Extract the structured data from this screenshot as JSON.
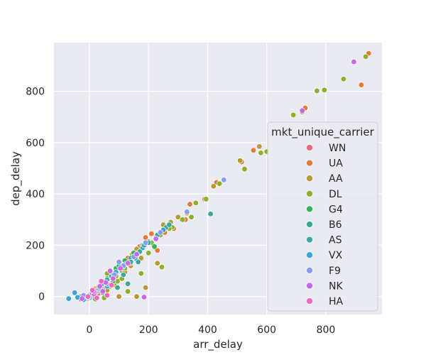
{
  "chart_data": {
    "type": "scatter",
    "title": "",
    "xlabel": "arr_delay",
    "ylabel": "dep_delay",
    "xlim": [
      -120,
      990
    ],
    "ylim": [
      -70,
      990
    ],
    "xticks": [
      0,
      200,
      400,
      600,
      800
    ],
    "yticks": [
      0,
      200,
      400,
      600,
      800
    ],
    "grid": true,
    "legend_position": "center-right",
    "legend_title": "mkt_unique_carrier",
    "series": [
      {
        "name": "WN",
        "color": "#e8697e",
        "points": [
          [
            -10,
            -5
          ],
          [
            0,
            2
          ],
          [
            5,
            10
          ],
          [
            12,
            8
          ],
          [
            20,
            15
          ],
          [
            25,
            20
          ],
          [
            30,
            12
          ],
          [
            40,
            30
          ],
          [
            50,
            40
          ],
          [
            10,
            -3
          ],
          [
            -5,
            -2
          ],
          [
            15,
            5
          ]
        ]
      },
      {
        "name": "UA",
        "color": "#e07b39",
        "points": [
          [
            945,
            948
          ],
          [
            920,
            825
          ],
          [
            730,
            735
          ],
          [
            555,
            570
          ],
          [
            515,
            525
          ],
          [
            430,
            445
          ],
          [
            390,
            380
          ],
          [
            340,
            360
          ],
          [
            325,
            300
          ],
          [
            285,
            265
          ],
          [
            255,
            250
          ],
          [
            230,
            180
          ],
          [
            210,
            245
          ],
          [
            170,
            195
          ],
          [
            150,
            160
          ],
          [
            130,
            150
          ],
          [
            110,
            120
          ],
          [
            80,
            95
          ],
          [
            60,
            70
          ],
          [
            40,
            50
          ],
          [
            20,
            30
          ],
          [
            0,
            5
          ],
          [
            -10,
            -5
          ],
          [
            -30,
            -10
          ],
          [
            100,
            110
          ],
          [
            190,
            230
          ],
          [
            260,
            270
          ],
          [
            50,
            60
          ],
          [
            140,
            120
          ],
          [
            205,
            210
          ]
        ]
      },
      {
        "name": "AA",
        "color": "#b69a34",
        "points": [
          [
            720,
            720
          ],
          [
            575,
            585
          ],
          [
            510,
            530
          ],
          [
            420,
            430
          ],
          [
            330,
            325
          ],
          [
            300,
            310
          ],
          [
            275,
            290
          ],
          [
            250,
            280
          ],
          [
            225,
            225
          ],
          [
            200,
            215
          ],
          [
            160,
            185
          ],
          [
            145,
            165
          ],
          [
            125,
            130
          ],
          [
            110,
            100
          ],
          [
            90,
            80
          ],
          [
            70,
            75
          ],
          [
            50,
            55
          ],
          [
            30,
            35
          ],
          [
            10,
            15
          ],
          [
            -5,
            0
          ],
          [
            -20,
            -8
          ],
          [
            -40,
            -5
          ],
          [
            160,
            0
          ],
          [
            190,
            35
          ],
          [
            100,
            0
          ],
          [
            230,
            130
          ],
          [
            175,
            150
          ],
          [
            120,
            95
          ],
          [
            60,
            25
          ],
          [
            85,
            45
          ]
        ]
      },
      {
        "name": "DL",
        "color": "#8fae2c",
        "points": [
          [
            935,
            935
          ],
          [
            860,
            848
          ],
          [
            795,
            805
          ],
          [
            770,
            802
          ],
          [
            690,
            708
          ],
          [
            600,
            565
          ],
          [
            580,
            560
          ],
          [
            525,
            497
          ],
          [
            440,
            440
          ],
          [
            395,
            380
          ],
          [
            360,
            365
          ],
          [
            345,
            310
          ],
          [
            315,
            300
          ],
          [
            280,
            270
          ],
          [
            270,
            265
          ],
          [
            245,
            115
          ],
          [
            240,
            240
          ],
          [
            225,
            230
          ],
          [
            210,
            210
          ],
          [
            180,
            200
          ],
          [
            165,
            170
          ],
          [
            140,
            130
          ],
          [
            120,
            110
          ],
          [
            90,
            100
          ],
          [
            70,
            40
          ],
          [
            45,
            30
          ],
          [
            25,
            20
          ],
          [
            5,
            10
          ],
          [
            -15,
            -5
          ],
          [
            -30,
            0
          ],
          [
            20,
            -10
          ],
          [
            50,
            -5
          ],
          [
            130,
            20
          ],
          [
            95,
            60
          ],
          [
            60,
            90
          ],
          [
            200,
            170
          ],
          [
            175,
            90
          ],
          [
            110,
            70
          ]
        ]
      },
      {
        "name": "G4",
        "color": "#33b354",
        "points": [
          [
            220,
            195
          ],
          [
            150,
            170
          ],
          [
            90,
            110
          ],
          [
            60,
            70
          ],
          [
            35,
            40
          ],
          [
            15,
            20
          ],
          [
            0,
            5
          ],
          [
            -10,
            -2
          ],
          [
            80,
            60
          ],
          [
            120,
            140
          ],
          [
            45,
            15
          ]
        ]
      },
      {
        "name": "B6",
        "color": "#3aa892",
        "points": [
          [
            410,
            322
          ],
          [
            260,
            270
          ],
          [
            180,
            190
          ],
          [
            140,
            150
          ],
          [
            110,
            110
          ],
          [
            75,
            80
          ],
          [
            50,
            55
          ],
          [
            30,
            25
          ],
          [
            10,
            5
          ],
          [
            -5,
            -8
          ],
          [
            130,
            50
          ],
          [
            165,
            135
          ],
          [
            95,
            35
          ]
        ]
      },
      {
        "name": "AS",
        "color": "#37ab9f",
        "points": [
          [
            270,
            280
          ],
          [
            230,
            240
          ],
          [
            200,
            210
          ],
          [
            170,
            175
          ],
          [
            140,
            135
          ],
          [
            100,
            120
          ],
          [
            80,
            90
          ],
          [
            60,
            65
          ],
          [
            40,
            45
          ],
          [
            20,
            22
          ],
          [
            0,
            0
          ],
          [
            -15,
            -10
          ],
          [
            115,
            85
          ]
        ]
      },
      {
        "name": "VX",
        "color": "#3aa5d6",
        "points": [
          [
            -70,
            -8
          ],
          [
            -40,
            -3
          ],
          [
            -20,
            -12
          ],
          [
            10,
            10
          ],
          [
            35,
            30
          ],
          [
            60,
            40
          ],
          [
            90,
            95
          ],
          [
            120,
            125
          ],
          [
            155,
            150
          ],
          [
            250,
            260
          ],
          [
            185,
            200
          ],
          [
            -50,
            15
          ]
        ]
      },
      {
        "name": "F9",
        "color": "#8a9cef",
        "points": [
          [
            455,
            455
          ],
          [
            330,
            330
          ],
          [
            240,
            250
          ],
          [
            190,
            210
          ],
          [
            150,
            155
          ],
          [
            115,
            120
          ],
          [
            85,
            85
          ],
          [
            60,
            50
          ],
          [
            40,
            30
          ],
          [
            20,
            15
          ],
          [
            0,
            -5
          ],
          [
            -20,
            5
          ],
          [
            100,
            135
          ]
        ]
      },
      {
        "name": "NK",
        "color": "#c867e8",
        "points": [
          [
            895,
            915
          ],
          [
            720,
            725
          ],
          [
            225,
            225
          ],
          [
            185,
            -2
          ],
          [
            160,
            165
          ],
          [
            130,
            130
          ],
          [
            105,
            110
          ],
          [
            80,
            70
          ],
          [
            55,
            55
          ],
          [
            35,
            40
          ],
          [
            15,
            10
          ],
          [
            -5,
            -3
          ],
          [
            -25,
            -8
          ],
          [
            70,
            100
          ],
          [
            45,
            20
          ]
        ]
      },
      {
        "name": "HA",
        "color": "#ee66c0",
        "points": [
          [
            -5,
            0
          ],
          [
            15,
            20
          ],
          [
            40,
            60
          ],
          [
            60,
            5
          ],
          [
            25,
            -5
          ],
          [
            75,
            45
          ],
          [
            10,
            25
          ]
        ]
      }
    ]
  }
}
